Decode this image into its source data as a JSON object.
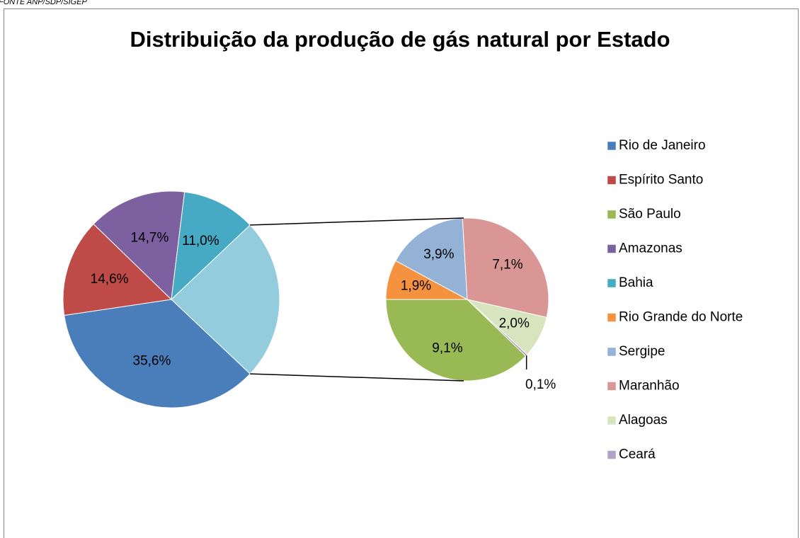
{
  "source": "FONTE ANP/SDP/SIGEP",
  "chart_data": {
    "type": "pie",
    "title": "Distribuição da produção de gás natural por Estado",
    "categories": [
      "Rio de Janeiro",
      "Espírito Santo",
      "São Paulo",
      "Amazonas",
      "Bahia",
      "Rio Grande do Norte",
      "Sergipe",
      "Maranhão",
      "Alagoas",
      "Ceará"
    ],
    "values": [
      35.6,
      14.6,
      9.1,
      14.7,
      11.0,
      1.9,
      3.9,
      7.1,
      2.0,
      0.1
    ],
    "value_labels": [
      "35,6%",
      "14,6%",
      "9,1%",
      "14,7%",
      "11,0%",
      "1,9%",
      "3,9%",
      "7,1%",
      "2,0%",
      "0,1%"
    ],
    "colors": [
      "#4a7ebb",
      "#be4b48",
      "#98b954",
      "#7d60a0",
      "#46aac5",
      "#f59240",
      "#94b2d6",
      "#d99694",
      "#d7e4bd",
      "#b3a2c7"
    ],
    "secondary": [
      2,
      5,
      6,
      7,
      8,
      9
    ],
    "other_color": "#93cddd",
    "legend": "right"
  }
}
